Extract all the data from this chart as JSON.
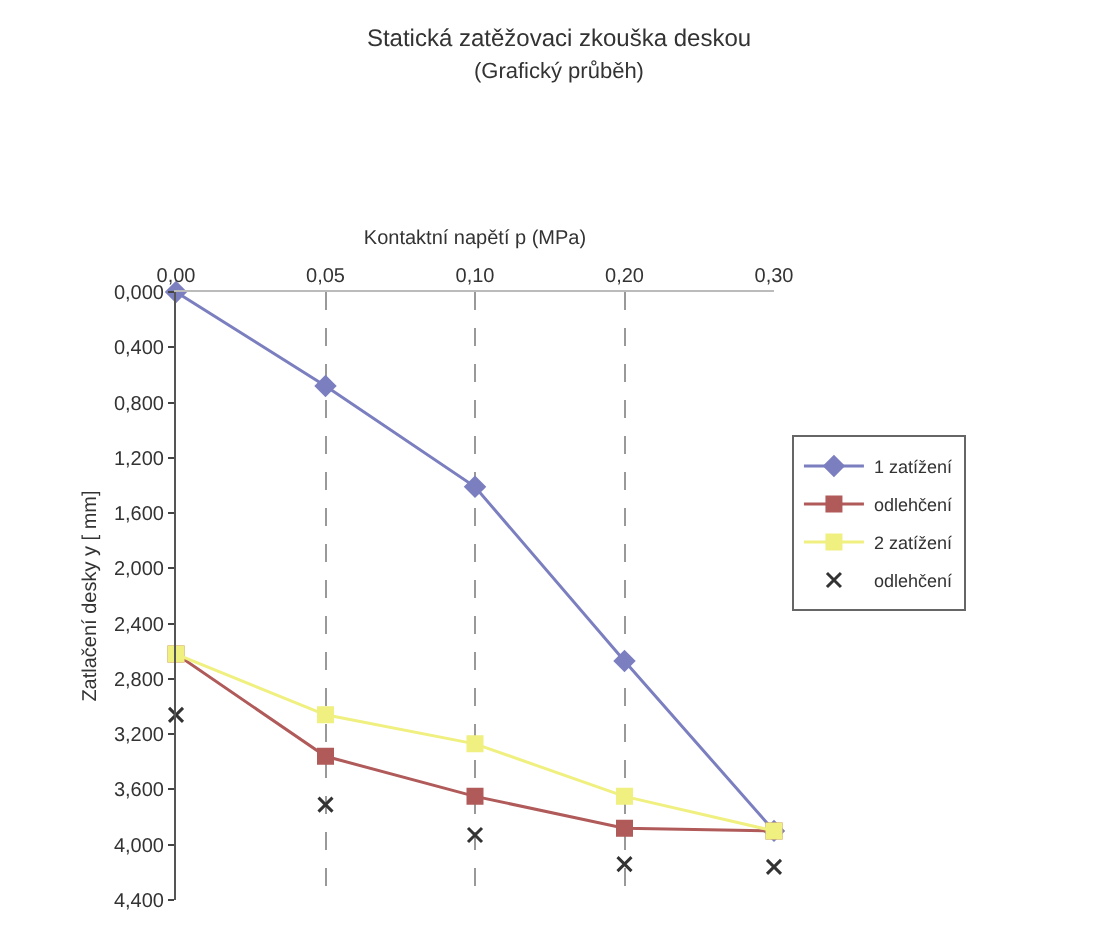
{
  "chart_data": {
    "type": "line",
    "title": "Statická zatěžovaci zkouška deskou",
    "subtitle": "(Grafický průběh)",
    "xlabel": "Kontaktní napětí p (MPa)",
    "ylabel": "Zatlačení desky y [ mm]",
    "categories": [
      "0,00",
      "0,05",
      "0,10",
      "0,20",
      "0,30"
    ],
    "series": [
      {
        "name": "1 zatížení",
        "color": "#7b7fc0",
        "marker": "diamond",
        "values": [
          0,
          0.68,
          1.41,
          2.67,
          3.9
        ]
      },
      {
        "name": "odlehčení",
        "color": "#b05a5a",
        "marker": "square",
        "values": [
          2.62,
          3.36,
          3.65,
          3.88,
          3.9
        ]
      },
      {
        "name": "2 zatížení",
        "color": "#f0f080",
        "marker": "square",
        "values": [
          2.62,
          3.06,
          3.27,
          3.65,
          3.9
        ]
      },
      {
        "name": "odlehčení",
        "type": "scatter",
        "color": "#333333",
        "marker": "cross",
        "values": [
          3.06,
          3.71,
          3.93,
          4.14,
          4.16
        ]
      }
    ],
    "ylim": [
      4.4,
      0
    ],
    "yticks": [
      {
        "value": 0,
        "label": "0,000"
      },
      {
        "value": 0.4,
        "label": "0,400"
      },
      {
        "value": 0.8,
        "label": "0,800"
      },
      {
        "value": 1.2,
        "label": "1,200"
      },
      {
        "value": 1.6,
        "label": "1,600"
      },
      {
        "value": 2,
        "label": "2,000"
      },
      {
        "value": 2.4,
        "label": "2,400"
      },
      {
        "value": 2.8,
        "label": "2,800"
      },
      {
        "value": 3.2,
        "label": "3,200"
      },
      {
        "value": 3.6,
        "label": "3,600"
      },
      {
        "value": 4,
        "label": "4,000"
      },
      {
        "value": 4.4,
        "label": "4,400"
      }
    ],
    "grid": "x",
    "legend": "right"
  }
}
